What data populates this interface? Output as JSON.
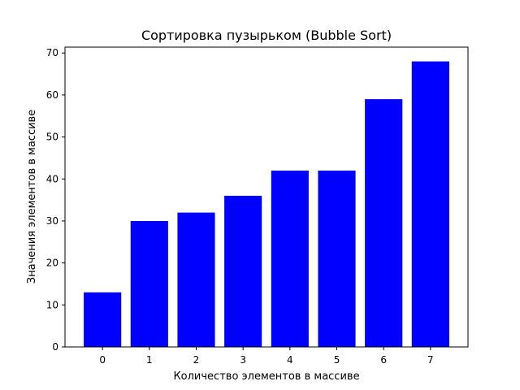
{
  "chart_data": {
    "type": "bar",
    "title": "Сортировка пузырьком (Bubble Sort)",
    "xlabel": "Количество элементов в массиве",
    "ylabel": "Значения элементов в массиве",
    "categories": [
      "0",
      "1",
      "2",
      "3",
      "4",
      "5",
      "6",
      "7"
    ],
    "values": [
      13,
      30,
      32,
      36,
      42,
      42,
      59,
      68
    ],
    "ylim": [
      0,
      71.4
    ],
    "yticks": [
      0,
      10,
      20,
      30,
      40,
      50,
      60,
      70
    ],
    "grid": false,
    "legend": "none",
    "bar_color": "#0000ff"
  }
}
